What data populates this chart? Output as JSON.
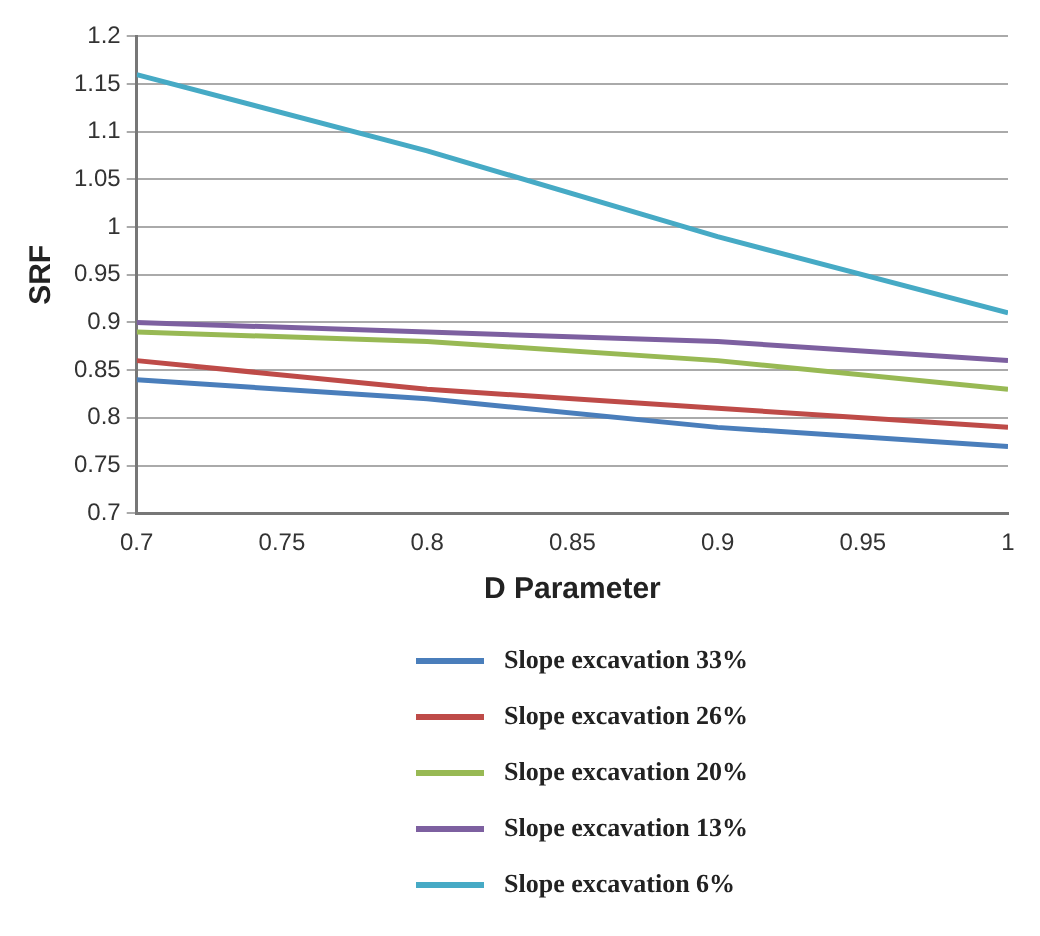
{
  "chart_data": {
    "type": "line",
    "xlabel": "D Parameter",
    "ylabel": "SRF",
    "x": [
      0.7,
      0.8,
      0.9,
      1
    ],
    "xlim": [
      0.7,
      1
    ],
    "xticks": [
      0.7,
      0.75,
      0.8,
      0.85,
      0.9,
      0.95,
      1
    ],
    "ylim": [
      0.7,
      1.2
    ],
    "yticks": [
      0.7,
      0.75,
      0.8,
      0.85,
      0.9,
      0.95,
      1,
      1.05,
      1.1,
      1.15,
      1.2
    ],
    "grid": "y",
    "legend": "bottom",
    "marker": "none",
    "series": [
      {
        "name": "Slope excavation 33%",
        "color": "#4a7ebb",
        "values": [
          0.84,
          0.82,
          0.79,
          0.77
        ]
      },
      {
        "name": "Slope excavation 26%",
        "color": "#be4b48",
        "values": [
          0.86,
          0.83,
          0.81,
          0.79
        ]
      },
      {
        "name": "Slope excavation 20%",
        "color": "#98b954",
        "values": [
          0.89,
          0.88,
          0.86,
          0.83
        ]
      },
      {
        "name": "Slope excavation 13%",
        "color": "#7d60a0",
        "values": [
          0.9,
          0.89,
          0.88,
          0.86
        ]
      },
      {
        "name": "Slope excavation 6%",
        "color": "#46aac5",
        "values": [
          1.16,
          1.08,
          0.99,
          0.91
        ]
      }
    ]
  }
}
